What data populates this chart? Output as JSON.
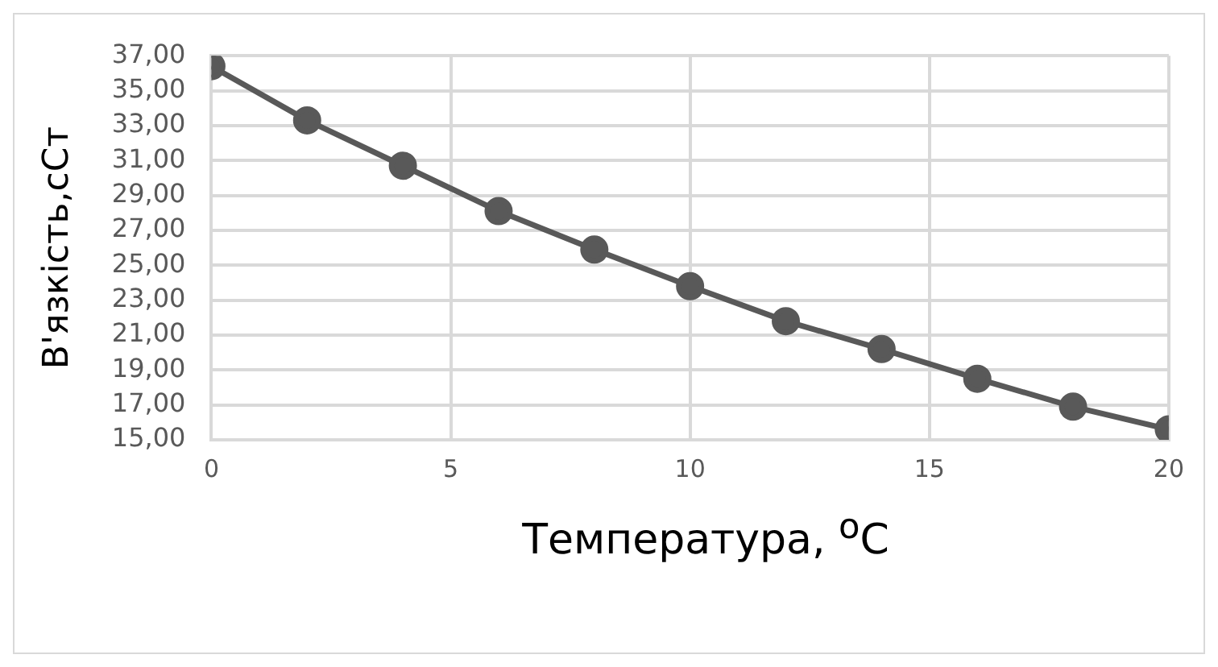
{
  "chart_data": {
    "type": "line",
    "xlabel": "Температура, $^{o}$C",
    "ylabel": "В'язкість,сСт",
    "x": [
      0,
      2,
      4,
      6,
      8,
      10,
      12,
      14,
      16,
      18,
      20
    ],
    "series": [
      {
        "color": "#595959",
        "values": [
          36.4,
          33.3,
          30.7,
          28.1,
          25.9,
          23.8,
          21.8,
          20.2,
          18.5,
          16.9,
          15.6
        ]
      }
    ],
    "xlim": [
      0,
      20
    ],
    "xticks": [
      0,
      5,
      10,
      15,
      20
    ],
    "ylim": [
      15,
      37
    ],
    "yticks": [
      {
        "value": 15,
        "label": "15,00"
      },
      {
        "value": 17,
        "label": "17,00"
      },
      {
        "value": 19,
        "label": "19,00"
      },
      {
        "value": 21,
        "label": "21,00"
      },
      {
        "value": 23,
        "label": "23,00"
      },
      {
        "value": 25,
        "label": "25,00"
      },
      {
        "value": 27,
        "label": "27,00"
      },
      {
        "value": 29,
        "label": "29,00"
      },
      {
        "value": 31,
        "label": "31,00"
      },
      {
        "value": 33,
        "label": "33,00"
      },
      {
        "value": 35,
        "label": "35,00"
      },
      {
        "value": 37,
        "label": "37,00"
      }
    ],
    "grid": true,
    "legend": false,
    "marker": "circle",
    "line_style": "solid"
  }
}
